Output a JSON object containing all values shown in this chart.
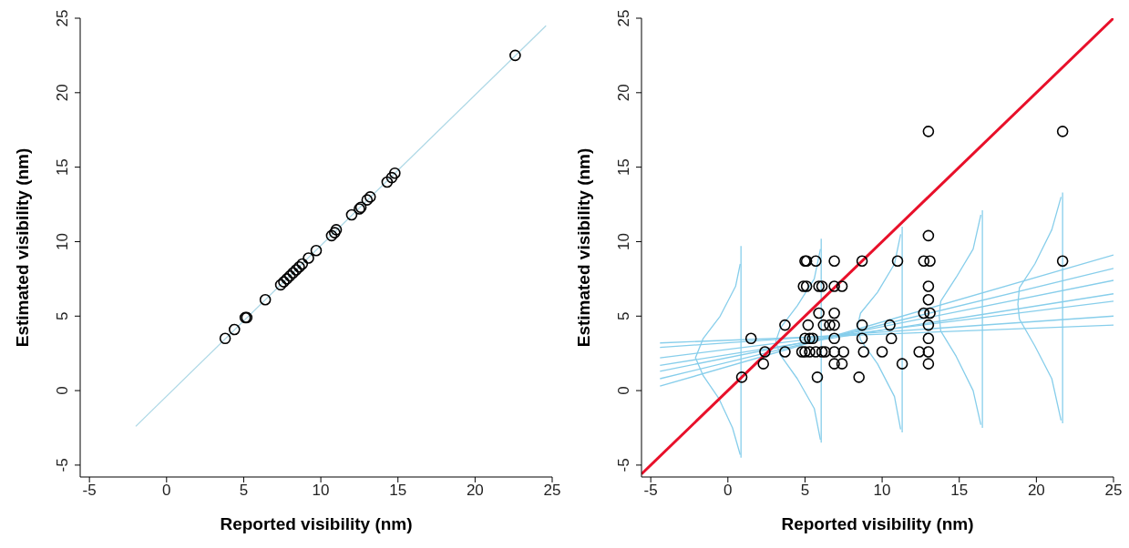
{
  "chart_data": [
    {
      "type": "scatter",
      "xlabel": "Reported visibility (nm)",
      "ylabel": "Estimated visibility (nm)",
      "xlim": [
        -5.6,
        25
      ],
      "ylim": [
        -5.8,
        25
      ],
      "xticks": [
        -5,
        0,
        5,
        10,
        15,
        20,
        25
      ],
      "yticks": [
        -5,
        0,
        5,
        10,
        15,
        20,
        25
      ],
      "grid": false,
      "series": [
        {
          "type": "line",
          "color": "#add8e6",
          "x": [
            -2,
            24.6
          ],
          "values": [
            -2.4,
            24.5
          ]
        },
        {
          "marker": "circle",
          "color": "#000000",
          "x": [
            3.8,
            4.4,
            5.1,
            5.2,
            6.4,
            7.4,
            7.6,
            7.8,
            8.0,
            8.2,
            8.4,
            8.6,
            8.8,
            9.2,
            9.7,
            10.7,
            10.9,
            11.0,
            12.0,
            12.5,
            12.6,
            13.0,
            13.2,
            14.3,
            14.6,
            14.8,
            22.6
          ],
          "values": [
            3.5,
            4.1,
            4.9,
            4.9,
            6.1,
            7.1,
            7.3,
            7.5,
            7.7,
            7.9,
            8.1,
            8.3,
            8.5,
            8.9,
            9.4,
            10.4,
            10.6,
            10.8,
            11.8,
            12.2,
            12.3,
            12.8,
            13.0,
            14.0,
            14.3,
            14.6,
            22.5
          ]
        }
      ]
    },
    {
      "type": "scatter",
      "xlabel": "Reported visibility (nm)",
      "ylabel": "Estimated visibility (nm)",
      "xlim": [
        -5.6,
        25
      ],
      "ylim": [
        -5.8,
        25
      ],
      "xticks": [
        -5,
        0,
        5,
        10,
        15,
        20,
        25
      ],
      "yticks": [
        -5,
        0,
        5,
        10,
        15,
        20,
        25
      ],
      "grid": false,
      "series": [
        {
          "type": "line",
          "color": "#87ceeb",
          "x": [
            -4.4,
            25
          ],
          "values": [
            0.3,
            9.1
          ]
        },
        {
          "type": "line",
          "color": "#87ceeb",
          "x": [
            -4.4,
            25
          ],
          "values": [
            0.8,
            8.2
          ]
        },
        {
          "type": "line",
          "color": "#87ceeb",
          "x": [
            -4.4,
            25
          ],
          "values": [
            1.3,
            7.4
          ]
        },
        {
          "type": "line",
          "color": "#87ceeb",
          "x": [
            -4.4,
            25
          ],
          "values": [
            1.7,
            6.5
          ]
        },
        {
          "type": "line",
          "color": "#87ceeb",
          "x": [
            -4.4,
            25
          ],
          "values": [
            2.2,
            6.0
          ]
        },
        {
          "type": "line",
          "color": "#87ceeb",
          "x": [
            -4.4,
            25
          ],
          "values": [
            2.9,
            5.0
          ]
        },
        {
          "type": "line",
          "color": "#87ceeb",
          "x": [
            -4.4,
            25
          ],
          "values": [
            3.2,
            4.4
          ]
        },
        {
          "type": "line",
          "color": "#87ceeb",
          "x": [
            0.85,
            0.85
          ],
          "values": [
            -4.5,
            9.7
          ]
        },
        {
          "type": "line",
          "color": "#87ceeb",
          "x": [
            0.8,
            0.5,
            -0.5,
            -1.6,
            -2.1,
            -1.6,
            -0.6,
            0.3,
            0.8
          ],
          "values": [
            8.5,
            7,
            5,
            3.5,
            2.2,
            1,
            -0.5,
            -2.5,
            -4.3
          ]
        },
        {
          "type": "line",
          "color": "#87ceeb",
          "x": [
            6.05,
            6.05
          ],
          "values": [
            -3.5,
            10.2
          ]
        },
        {
          "type": "line",
          "color": "#87ceeb",
          "x": [
            6.0,
            5.6,
            4.5,
            3.4,
            3.1,
            3.4,
            4.5,
            5.6,
            6.0
          ],
          "values": [
            9.5,
            7.5,
            5.7,
            4.2,
            3.3,
            2.4,
            0.8,
            -1.2,
            -3.3
          ]
        },
        {
          "type": "line",
          "color": "#87ceeb",
          "x": [
            11.3,
            11.3
          ],
          "values": [
            -2.8,
            11
          ]
        },
        {
          "type": "line",
          "color": "#87ceeb",
          "x": [
            11.2,
            10.8,
            9.7,
            8.6,
            8.4,
            8.6,
            9.7,
            10.8,
            11.2
          ],
          "values": [
            10.5,
            8.5,
            6.6,
            5.2,
            4.3,
            3.4,
            1.8,
            -0.4,
            -2.6
          ]
        },
        {
          "type": "line",
          "color": "#87ceeb",
          "x": [
            16.5,
            16.5
          ],
          "values": [
            -2.5,
            12.1
          ]
        },
        {
          "type": "line",
          "color": "#87ceeb",
          "x": [
            16.4,
            15.9,
            14.8,
            13.8,
            13.7,
            13.8,
            14.8,
            15.9,
            16.4
          ],
          "values": [
            11.8,
            9.5,
            7.6,
            6,
            5,
            4,
            2.3,
            0,
            -2.3
          ]
        },
        {
          "type": "line",
          "color": "#87ceeb",
          "x": [
            21.7,
            21.7
          ],
          "values": [
            -2.2,
            13.3
          ]
        },
        {
          "type": "line",
          "color": "#87ceeb",
          "x": [
            21.6,
            21.0,
            19.9,
            18.9,
            18.8,
            18.9,
            19.9,
            21.0,
            21.6
          ],
          "values": [
            13,
            10.8,
            8.5,
            6.9,
            5.8,
            4.8,
            3,
            0.8,
            -2
          ]
        },
        {
          "type": "line",
          "color": "#e8102a",
          "x": [
            -5.6,
            25
          ],
          "values": [
            -5.6,
            25
          ]
        },
        {
          "marker": "circle",
          "color": "#000000",
          "x": [
            0.9,
            1.5,
            2.4,
            2.3,
            3.7,
            3.7,
            4.9,
            5.1,
            5.0,
            5.1,
            5.7,
            5.2,
            5.0,
            5.3,
            5.5,
            4.8,
            5.0,
            5.3,
            5.7,
            5.8,
            5.9,
            5.9,
            6.1,
            6.1,
            6.3,
            6.2,
            6.6,
            6.9,
            6.9,
            7.4,
            6.9,
            6.9,
            6.9,
            6.9,
            7.5,
            6.9,
            7.4,
            8.7,
            8.7,
            8.7,
            8.8,
            8.5,
            10.0,
            10.5,
            10.6,
            11.0,
            11.3,
            12.4,
            12.7,
            13.1,
            12.7,
            13.1,
            13.0,
            13.0,
            13.0,
            13.0,
            13.0,
            13.0,
            13.0,
            13.0,
            21.7,
            21.7
          ],
          "values": [
            0.9,
            3.5,
            2.6,
            1.8,
            4.4,
            2.6,
            7.0,
            7.0,
            8.7,
            8.7,
            8.7,
            4.4,
            3.5,
            3.5,
            3.5,
            2.6,
            2.6,
            2.6,
            2.6,
            0.9,
            5.2,
            7.0,
            7.0,
            2.6,
            2.6,
            4.4,
            4.4,
            8.7,
            7.0,
            7.0,
            5.2,
            4.4,
            3.5,
            2.6,
            2.6,
            1.8,
            1.8,
            8.7,
            4.4,
            3.5,
            2.6,
            0.9,
            2.6,
            4.4,
            3.5,
            8.7,
            1.8,
            2.6,
            8.7,
            8.7,
            5.2,
            5.2,
            17.4,
            10.4,
            7.0,
            6.1,
            4.4,
            3.5,
            2.6,
            1.8,
            17.4,
            8.7
          ]
        }
      ]
    }
  ]
}
